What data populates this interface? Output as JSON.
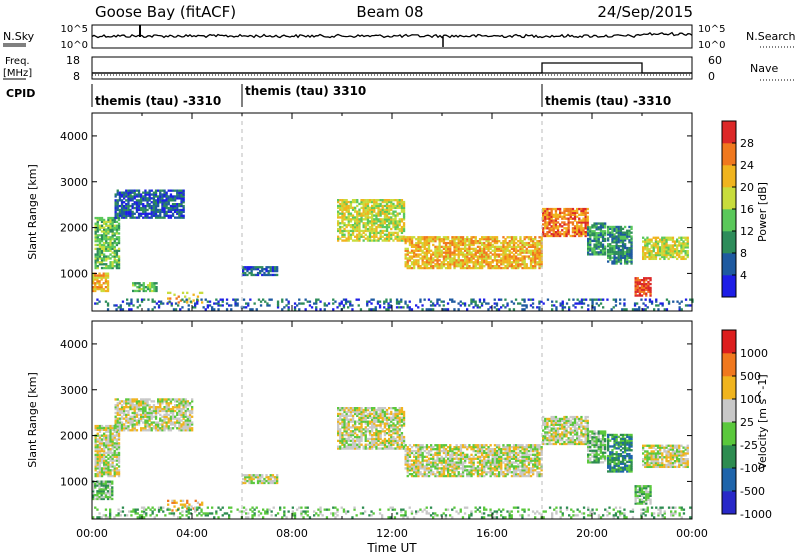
{
  "header": {
    "station": "Goose Bay (fitACF)",
    "beam": "Beam 08",
    "date": "24/Sep/2015"
  },
  "nsky_panel": {
    "left_label": "N.Sky",
    "left_ticks": [
      "10^5",
      "10^0"
    ],
    "right_label": "N.Search",
    "right_ticks": [
      "10^5",
      "10^0"
    ]
  },
  "freq_panel": {
    "left_label_1": "Freq.",
    "left_label_2": "[MHz]",
    "left_ticks": [
      "18",
      "8"
    ],
    "right_label": "Nave",
    "right_ticks": [
      "60",
      "0"
    ]
  },
  "cpid_panel": {
    "label": "CPID",
    "segments": [
      {
        "text": "themis (tau) -3310"
      },
      {
        "text": "themis (tau) 3310"
      },
      {
        "text": "themis (tau) -3310"
      }
    ]
  },
  "chart_data": [
    {
      "type": "heatmap",
      "panel": "power",
      "ylabel": "Slant Range [km]",
      "yticks": [
        1000,
        2000,
        3000,
        4000
      ],
      "ylim": [
        180,
        4500
      ],
      "xlim_hours": [
        0,
        24
      ],
      "colorbar_label": "Power [dB]",
      "colorbar_ticks": [
        "28",
        "24",
        "20",
        "16",
        "12",
        "8",
        "4"
      ],
      "colors": [
        "#1e1ee6",
        "#1e5aa0",
        "#2d8c5a",
        "#5ac85a",
        "#c8dc3c",
        "#f0b41e",
        "#f0781e",
        "#dc2828"
      ],
      "regions": [
        {
          "t0": 0.1,
          "t1": 1.1,
          "r0": 1100,
          "r1": 2200,
          "level": 3
        },
        {
          "t0": 0.9,
          "t1": 3.7,
          "r0": 2200,
          "r1": 2800,
          "level": 1
        },
        {
          "t0": 0.0,
          "t1": 0.6,
          "r0": 600,
          "r1": 1000,
          "level": 5
        },
        {
          "t0": 1.6,
          "t1": 2.6,
          "r0": 600,
          "r1": 800,
          "level": 3
        },
        {
          "t0": 3.0,
          "t1": 4.4,
          "r0": 350,
          "r1": 600,
          "level": 5
        },
        {
          "t0": 6.0,
          "t1": 7.4,
          "r0": 950,
          "r1": 1150,
          "level": 1
        },
        {
          "t0": 9.8,
          "t1": 12.5,
          "r0": 1700,
          "r1": 2600,
          "level": 4
        },
        {
          "t0": 12.5,
          "t1": 18.0,
          "r0": 1100,
          "r1": 1800,
          "level": 5
        },
        {
          "t0": 18.0,
          "t1": 19.8,
          "r0": 1800,
          "r1": 2400,
          "level": 6
        },
        {
          "t0": 19.8,
          "t1": 20.5,
          "r0": 1400,
          "r1": 2100,
          "level": 2
        },
        {
          "t0": 20.6,
          "t1": 21.6,
          "r0": 1200,
          "r1": 2000,
          "level": 2
        },
        {
          "t0": 21.7,
          "t1": 22.3,
          "r0": 500,
          "r1": 900,
          "level": 7
        },
        {
          "t0": 22.0,
          "t1": 23.8,
          "r0": 1300,
          "r1": 1800,
          "level": 4
        },
        {
          "t0": 0.0,
          "t1": 24.0,
          "r0": 200,
          "r1": 450,
          "level": 1
        }
      ]
    },
    {
      "type": "heatmap",
      "panel": "velocity",
      "ylabel": "Slant Range [km]",
      "yticks": [
        1000,
        2000,
        3000,
        4000
      ],
      "ylim": [
        180,
        4500
      ],
      "xlim_hours": [
        0,
        24
      ],
      "colorbar_label": "Velocity [m s^-1]",
      "colorbar_ticks": [
        "1000",
        "500",
        "100",
        "25",
        "-25",
        "-100",
        "-500",
        "-1000"
      ],
      "colors": [
        "#2828c8",
        "#1e64aa",
        "#2d8c50",
        "#5ac83c",
        "#c8c8c8",
        "#f0b41e",
        "#f0781e",
        "#dc1e1e"
      ],
      "regions": [
        {
          "t0": 0.1,
          "t1": 1.1,
          "r0": 1100,
          "r1": 2200,
          "level": 4
        },
        {
          "t0": 0.9,
          "t1": 4.0,
          "r0": 2100,
          "r1": 2800,
          "level": 4
        },
        {
          "t0": 0.0,
          "t1": 0.8,
          "r0": 600,
          "r1": 1000,
          "level": 3
        },
        {
          "t0": 3.0,
          "t1": 4.4,
          "r0": 350,
          "r1": 600,
          "level": 5
        },
        {
          "t0": 6.0,
          "t1": 7.4,
          "r0": 950,
          "r1": 1150,
          "level": 4
        },
        {
          "t0": 9.8,
          "t1": 12.5,
          "r0": 1700,
          "r1": 2600,
          "level": 4
        },
        {
          "t0": 12.5,
          "t1": 18.0,
          "r0": 1100,
          "r1": 1800,
          "level": 4
        },
        {
          "t0": 18.0,
          "t1": 19.8,
          "r0": 1800,
          "r1": 2400,
          "level": 4
        },
        {
          "t0": 19.8,
          "t1": 20.5,
          "r0": 1400,
          "r1": 2100,
          "level": 3
        },
        {
          "t0": 20.6,
          "t1": 21.6,
          "r0": 1200,
          "r1": 2000,
          "level": 2
        },
        {
          "t0": 21.7,
          "t1": 22.3,
          "r0": 500,
          "r1": 900,
          "level": 3
        },
        {
          "t0": 22.0,
          "t1": 23.8,
          "r0": 1300,
          "r1": 1800,
          "level": 4
        },
        {
          "t0": 0.0,
          "t1": 24.0,
          "r0": 200,
          "r1": 450,
          "level": 3
        }
      ]
    }
  ],
  "xaxis": {
    "ticks": [
      "00:00",
      "04:00",
      "08:00",
      "12:00",
      "16:00",
      "20:00",
      "00:00"
    ],
    "label": "Time UT"
  }
}
